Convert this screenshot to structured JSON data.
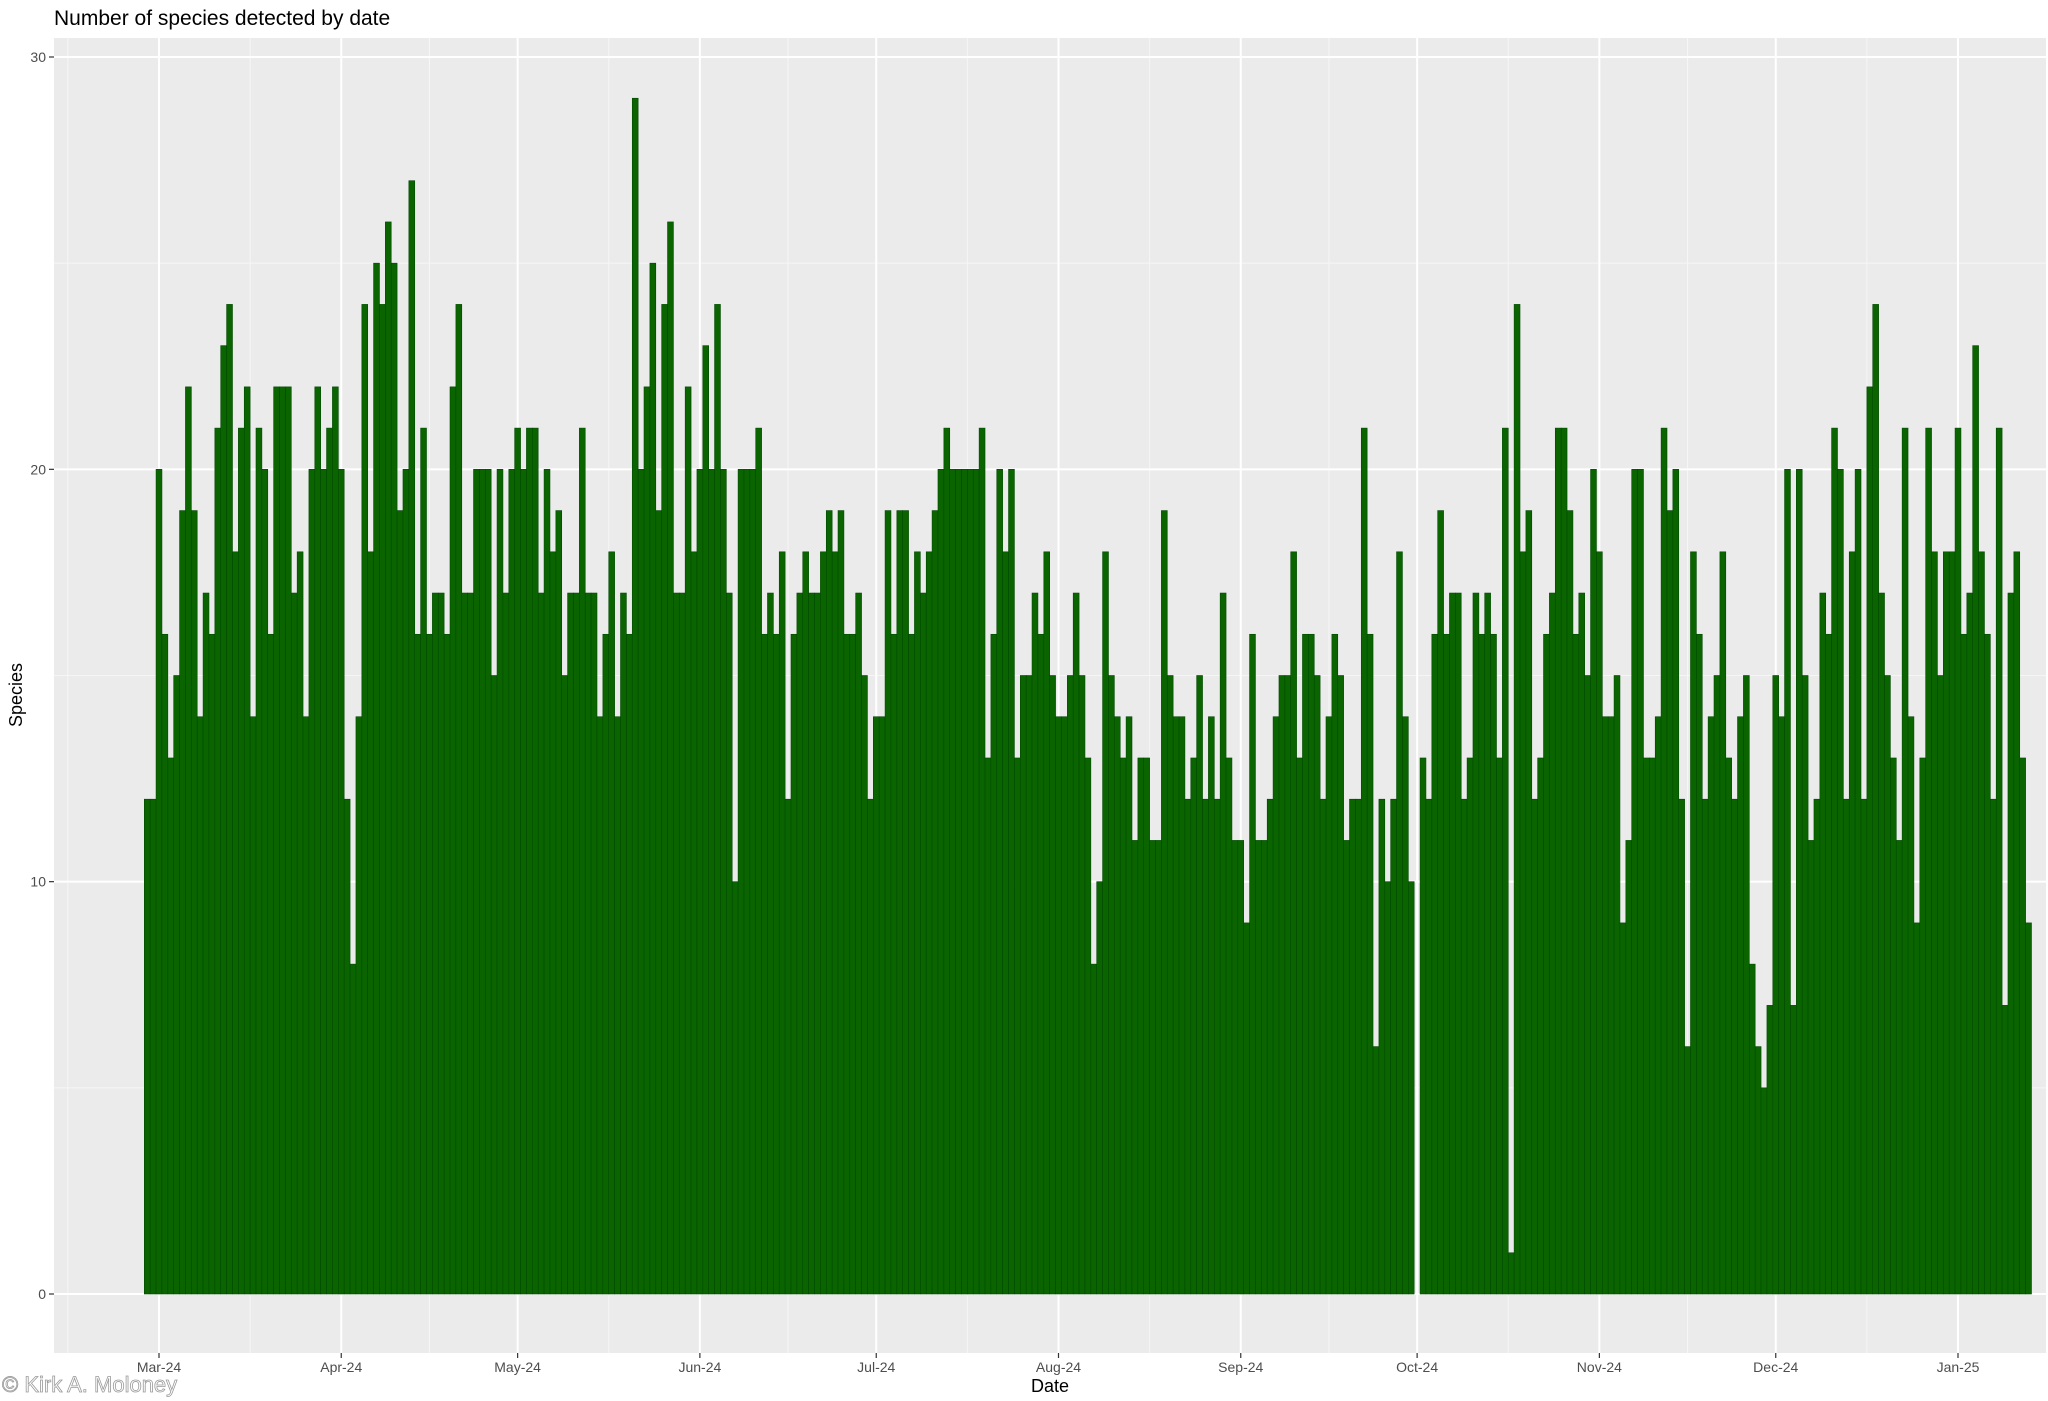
{
  "chart_data": {
    "type": "bar",
    "title": "Number of species detected by date",
    "xlabel": "Date",
    "ylabel": "Species",
    "x_start": "2024-02-28",
    "ylim": [
      0,
      30
    ],
    "y_ticks": [
      0,
      10,
      20,
      30
    ],
    "x_ticks": [
      "Mar-24",
      "Apr-24",
      "May-24",
      "Jun-24",
      "Jul-24",
      "Aug-24",
      "Sep-24",
      "Oct-24",
      "Nov-24",
      "Dec-24",
      "Jan-25"
    ],
    "x_tick_dates": [
      "2024-03-01",
      "2024-04-01",
      "2024-05-01",
      "2024-06-01",
      "2024-07-01",
      "2024-08-01",
      "2024-09-01",
      "2024-10-01",
      "2024-11-01",
      "2024-12-01",
      "2025-01-01"
    ],
    "bar_color": "#0a6500",
    "panel_background": "#ebebeb",
    "grid": true,
    "legend": "none",
    "values": [
      12,
      12,
      20,
      16,
      13,
      15,
      19,
      22,
      19,
      14,
      17,
      16,
      21,
      23,
      24,
      18,
      21,
      22,
      14,
      21,
      20,
      16,
      22,
      22,
      22,
      17,
      18,
      14,
      20,
      22,
      20,
      21,
      22,
      20,
      12,
      8,
      14,
      24,
      18,
      25,
      24,
      26,
      25,
      19,
      20,
      27,
      16,
      21,
      16,
      17,
      17,
      16,
      22,
      24,
      17,
      17,
      20,
      20,
      20,
      15,
      20,
      17,
      20,
      21,
      20,
      21,
      21,
      17,
      20,
      18,
      19,
      15,
      17,
      17,
      21,
      17,
      17,
      14,
      16,
      18,
      14,
      17,
      16,
      29,
      20,
      22,
      25,
      19,
      24,
      26,
      17,
      17,
      22,
      18,
      20,
      23,
      20,
      24,
      20,
      17,
      10,
      20,
      20,
      20,
      21,
      16,
      17,
      16,
      18,
      12,
      16,
      17,
      18,
      17,
      17,
      18,
      19,
      18,
      19,
      16,
      16,
      17,
      15,
      12,
      14,
      14,
      19,
      16,
      19,
      19,
      16,
      18,
      17,
      18,
      19,
      20,
      21,
      20,
      20,
      20,
      20,
      20,
      21,
      13,
      16,
      20,
      18,
      20,
      13,
      15,
      15,
      17,
      16,
      18,
      15,
      14,
      14,
      15,
      17,
      15,
      13,
      8,
      10,
      18,
      15,
      14,
      13,
      14,
      11,
      13,
      13,
      11,
      11,
      19,
      15,
      14,
      14,
      12,
      13,
      15,
      12,
      14,
      12,
      17,
      13,
      11,
      11,
      9,
      16,
      11,
      11,
      12,
      14,
      15,
      15,
      18,
      13,
      16,
      16,
      15,
      12,
      14,
      16,
      15,
      11,
      12,
      12,
      21,
      16,
      6,
      12,
      10,
      12,
      18,
      14,
      10,
      null,
      13,
      12,
      16,
      19,
      16,
      17,
      17,
      12,
      13,
      17,
      16,
      17,
      16,
      13,
      21,
      1,
      24,
      18,
      19,
      12,
      13,
      16,
      17,
      21,
      21,
      19,
      16,
      17,
      15,
      20,
      18,
      14,
      14,
      15,
      9,
      11,
      20,
      20,
      13,
      13,
      14,
      21,
      19,
      20,
      12,
      6,
      18,
      16,
      12,
      14,
      15,
      18,
      13,
      12,
      14,
      15,
      8,
      6,
      5,
      7,
      15,
      14,
      20,
      7,
      20,
      15,
      11,
      12,
      17,
      16,
      21,
      20,
      12,
      18,
      20,
      12,
      22,
      24,
      17,
      15,
      13,
      11,
      21,
      14,
      9,
      13,
      21,
      18,
      15,
      18,
      18,
      21,
      16,
      17,
      23,
      18,
      16,
      12,
      21,
      7,
      17,
      18,
      13,
      9
    ]
  },
  "watermark": "© Kirk A. Moloney"
}
